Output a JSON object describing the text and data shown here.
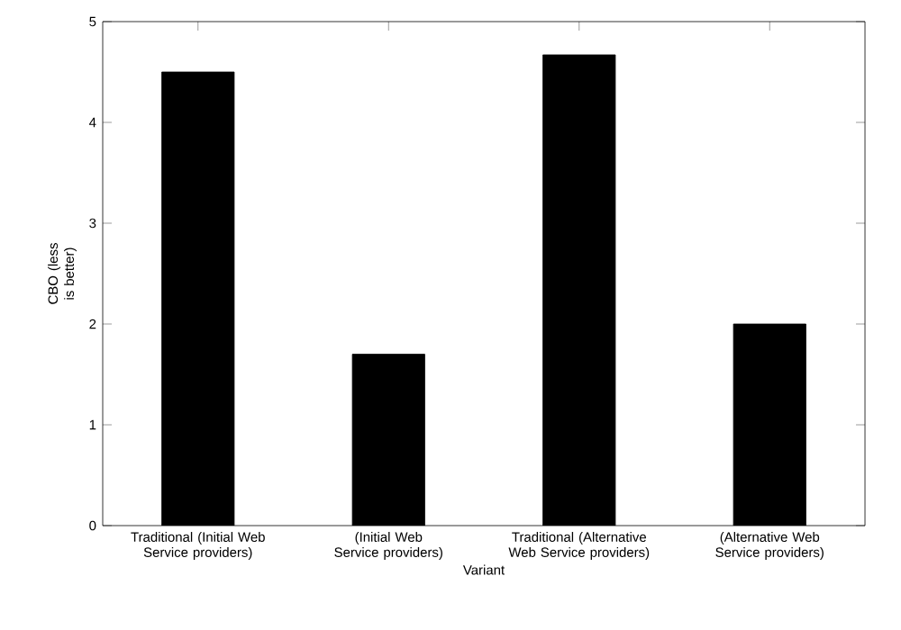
{
  "chart_data": {
    "type": "bar",
    "xlabel": "Variant",
    "ylabel": "CBO (less is better)",
    "categories": [
      "Traditional (Initial Web Service providers)",
      "(Initial Web Service providers)",
      "Traditional (Alternative Web Service providers)",
      "(Alternative Web Service providers)"
    ],
    "values": [
      4.5,
      1.7,
      4.67,
      2.0
    ],
    "color": "#000000",
    "ylim": [
      0,
      5
    ],
    "yticks": [
      0,
      1,
      2,
      3,
      4,
      5
    ],
    "grid": false
  }
}
